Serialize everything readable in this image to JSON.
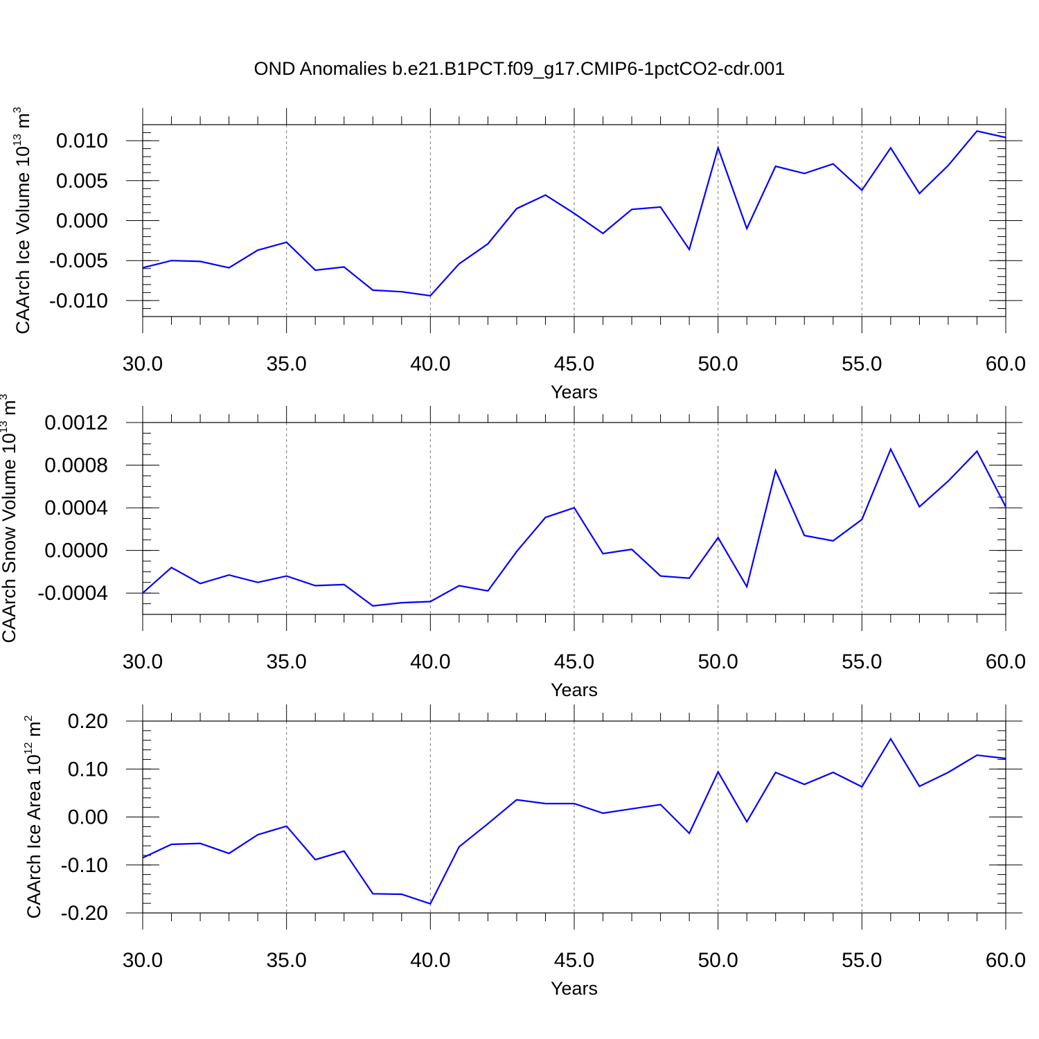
{
  "title": "OND Anomalies b.e21.B1PCT.f09_g17.CMIP6-1pctCO2-cdr.001",
  "chart_data": [
    {
      "type": "line",
      "ylabel": {
        "main": "CAArch Ice Volume 10",
        "exp": "13",
        "unit": " m",
        "unit_exp": "3"
      },
      "xlabel": "Years",
      "xlim": [
        30,
        60
      ],
      "ylim": [
        -0.012,
        0.012
      ],
      "xticks": [
        30,
        35,
        40,
        45,
        50,
        55,
        60
      ],
      "xtick_labels": [
        "30.0",
        "35.0",
        "40.0",
        "45.0",
        "50.0",
        "55.0",
        "60.0"
      ],
      "yticks": [
        -0.01,
        -0.005,
        0.0,
        0.005,
        0.01
      ],
      "ytick_labels": [
        "-0.010",
        "-0.005",
        "0.000",
        "0.005",
        "0.010"
      ],
      "yminor_step": 0.001,
      "grid": "dashed-vertical-at-major-x",
      "line_color": "#0000ff",
      "x": [
        30,
        31,
        32,
        33,
        34,
        35,
        36,
        37,
        38,
        39,
        40,
        41,
        42,
        43,
        44,
        45,
        46,
        47,
        48,
        49,
        50,
        51,
        52,
        53,
        54,
        55,
        56,
        57,
        58,
        59,
        60
      ],
      "values": [
        -0.0059,
        -0.005,
        -0.0051,
        -0.0059,
        -0.0037,
        -0.0027,
        -0.0062,
        -0.0058,
        -0.0087,
        -0.0089,
        -0.0094,
        -0.0054,
        -0.0029,
        0.0015,
        0.0032,
        0.0009,
        -0.0016,
        0.0014,
        0.0017,
        -0.0036,
        0.0091,
        -0.001,
        0.0068,
        0.0059,
        0.0071,
        0.0038,
        0.0091,
        0.0034,
        0.0069,
        0.0112,
        0.0104
      ]
    },
    {
      "type": "line",
      "ylabel": {
        "main": "CAArch Snow Volume 10",
        "exp": "13",
        "unit": " m",
        "unit_exp": "3"
      },
      "xlabel": "Years",
      "xlim": [
        30,
        60
      ],
      "ylim": [
        -0.0006,
        0.0012
      ],
      "xticks": [
        30,
        35,
        40,
        45,
        50,
        55,
        60
      ],
      "xtick_labels": [
        "30.0",
        "35.0",
        "40.0",
        "45.0",
        "50.0",
        "55.0",
        "60.0"
      ],
      "yticks": [
        -0.0004,
        0.0,
        0.0004,
        0.0008,
        0.0012
      ],
      "ytick_labels": [
        "-0.0004",
        "0.0000",
        "0.0004",
        "0.0008",
        "0.0012"
      ],
      "yminor_step": 0.0001,
      "grid": "dashed-vertical-at-major-x",
      "line_color": "#0000ff",
      "x": [
        30,
        31,
        32,
        33,
        34,
        35,
        36,
        37,
        38,
        39,
        40,
        41,
        42,
        43,
        44,
        45,
        46,
        47,
        48,
        49,
        50,
        51,
        52,
        53,
        54,
        55,
        56,
        57,
        58,
        59,
        60
      ],
      "values": [
        -0.0004,
        -0.00016,
        -0.00031,
        -0.00023,
        -0.0003,
        -0.00024,
        -0.00033,
        -0.00032,
        -0.00052,
        -0.00049,
        -0.00048,
        -0.00033,
        -0.00038,
        -1e-05,
        0.00031,
        0.0004,
        -3e-05,
        1e-05,
        -0.00024,
        -0.00026,
        0.00012,
        -0.00034,
        0.00075,
        0.00014,
        9e-05,
        0.00029,
        0.00095,
        0.00041,
        0.00065,
        0.00093,
        0.00041
      ]
    },
    {
      "type": "line",
      "ylabel": {
        "main": "CAArch Ice Area 10",
        "exp": "12",
        "unit": " m",
        "unit_exp": "2"
      },
      "xlabel": "Years",
      "xlim": [
        30,
        60
      ],
      "ylim": [
        -0.2,
        0.2
      ],
      "xticks": [
        30,
        35,
        40,
        45,
        50,
        55,
        60
      ],
      "xtick_labels": [
        "30.0",
        "35.0",
        "40.0",
        "45.0",
        "50.0",
        "55.0",
        "60.0"
      ],
      "yticks": [
        -0.2,
        -0.1,
        0.0,
        0.1,
        0.2
      ],
      "ytick_labels": [
        "-0.20",
        "-0.10",
        "0.00",
        "0.10",
        "0.20"
      ],
      "yminor_step": 0.02,
      "grid": "dashed-vertical-at-major-x",
      "line_color": "#0000ff",
      "x": [
        30,
        31,
        32,
        33,
        34,
        35,
        36,
        37,
        38,
        39,
        40,
        41,
        42,
        43,
        44,
        45,
        46,
        47,
        48,
        49,
        50,
        51,
        52,
        53,
        54,
        55,
        56,
        57,
        58,
        59,
        60
      ],
      "values": [
        -0.085,
        -0.057,
        -0.055,
        -0.076,
        -0.037,
        -0.019,
        -0.089,
        -0.071,
        -0.16,
        -0.161,
        -0.181,
        -0.062,
        -0.014,
        0.036,
        0.028,
        0.028,
        0.008,
        0.017,
        0.026,
        -0.034,
        0.094,
        -0.01,
        0.093,
        0.068,
        0.093,
        0.063,
        0.163,
        0.064,
        0.093,
        0.129,
        0.122
      ]
    }
  ]
}
